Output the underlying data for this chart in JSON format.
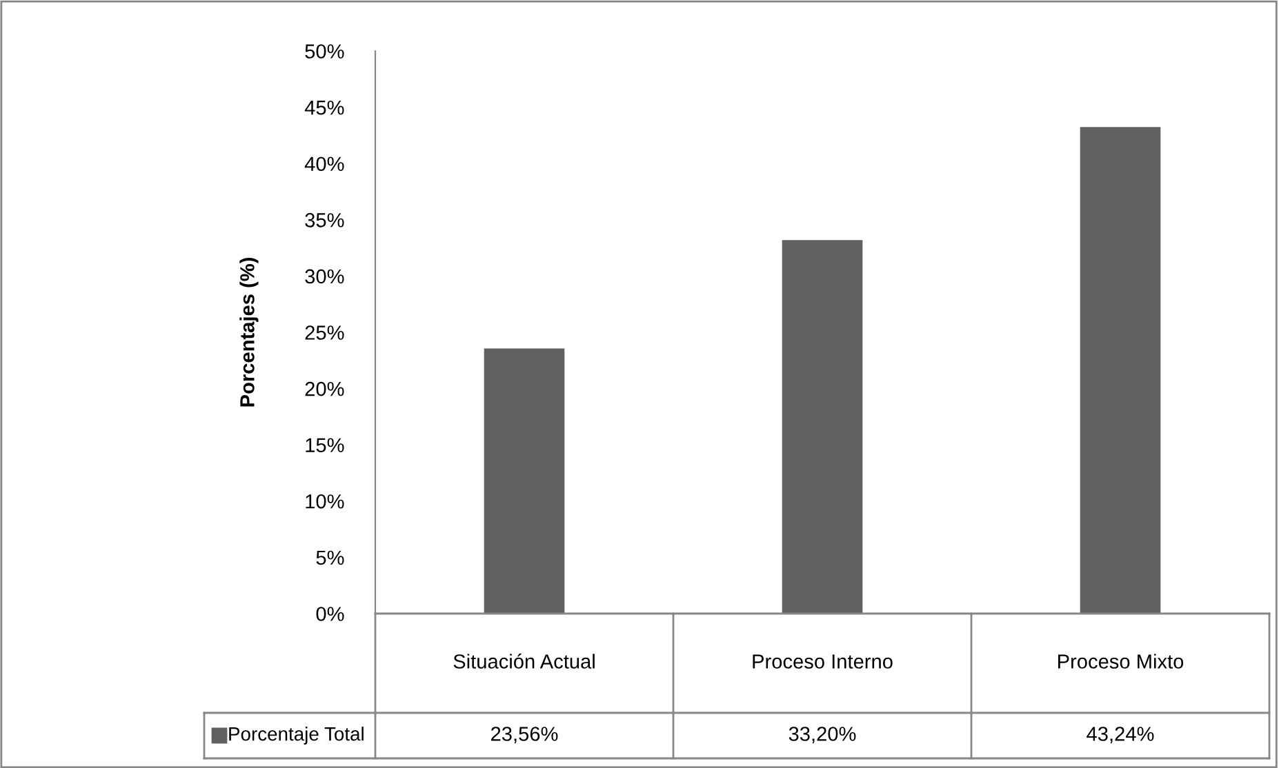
{
  "chart_data": {
    "type": "bar",
    "ylabel": "Porcentajes (%)",
    "categories": [
      "Situación Actual",
      "Proceso Interno",
      "Proceso Mixto"
    ],
    "series": [
      {
        "name": "Porcentaje Total",
        "color": "#616161",
        "values": [
          23.56,
          33.2,
          43.24
        ],
        "value_labels": [
          "23,56%",
          "33,20%",
          "43,24%"
        ]
      }
    ],
    "ylim": [
      0,
      50
    ],
    "yticks": [
      {
        "value": 0,
        "label": "0%"
      },
      {
        "value": 5,
        "label": "5%"
      },
      {
        "value": 10,
        "label": "10%"
      },
      {
        "value": 15,
        "label": "15%"
      },
      {
        "value": 20,
        "label": "20%"
      },
      {
        "value": 25,
        "label": "25%"
      },
      {
        "value": 30,
        "label": "30%"
      },
      {
        "value": 35,
        "label": "35%"
      },
      {
        "value": 40,
        "label": "40%"
      },
      {
        "value": 45,
        "label": "45%"
      },
      {
        "value": 50,
        "label": "50%"
      }
    ],
    "grid": false,
    "legend": "bottom"
  }
}
